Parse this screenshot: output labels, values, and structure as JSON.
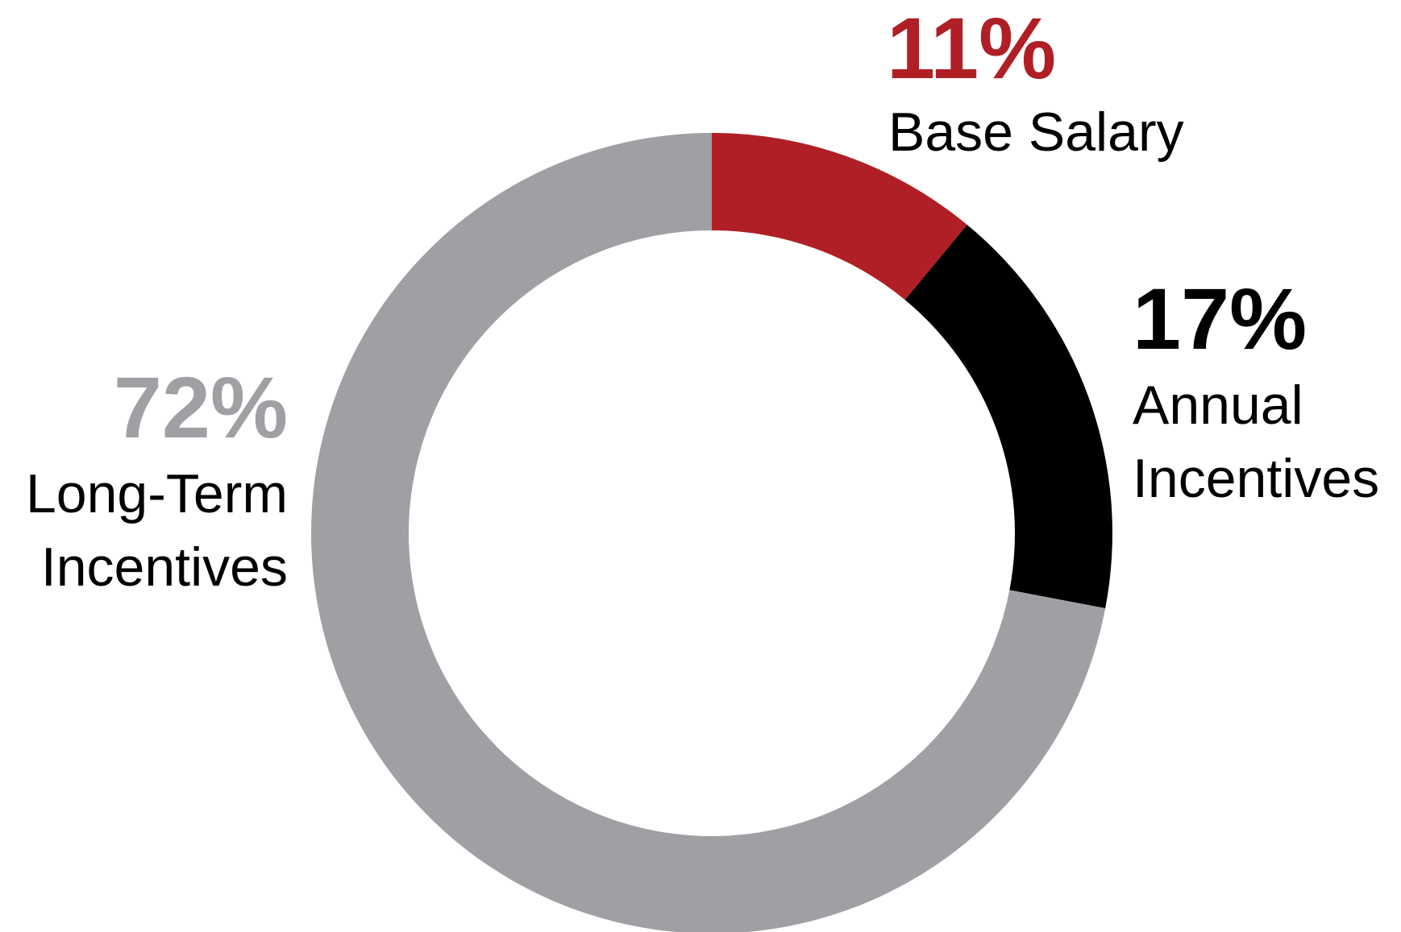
{
  "chart_data": {
    "type": "pie",
    "donut": true,
    "start_angle_deg": 0,
    "direction": "clockwise",
    "legend": "none",
    "slices": [
      {
        "pct_label": "11%",
        "label_lines": [
          "Base Salary"
        ],
        "value": 11,
        "color": "#B11F26"
      },
      {
        "pct_label": "17%",
        "label_lines": [
          "Annual",
          "Incentives"
        ],
        "value": 17,
        "color": "#000000"
      },
      {
        "pct_label": "72%",
        "label_lines": [
          "Long-Term",
          "Incentives"
        ],
        "value": 72,
        "color": "#9FA0A3"
      }
    ]
  }
}
